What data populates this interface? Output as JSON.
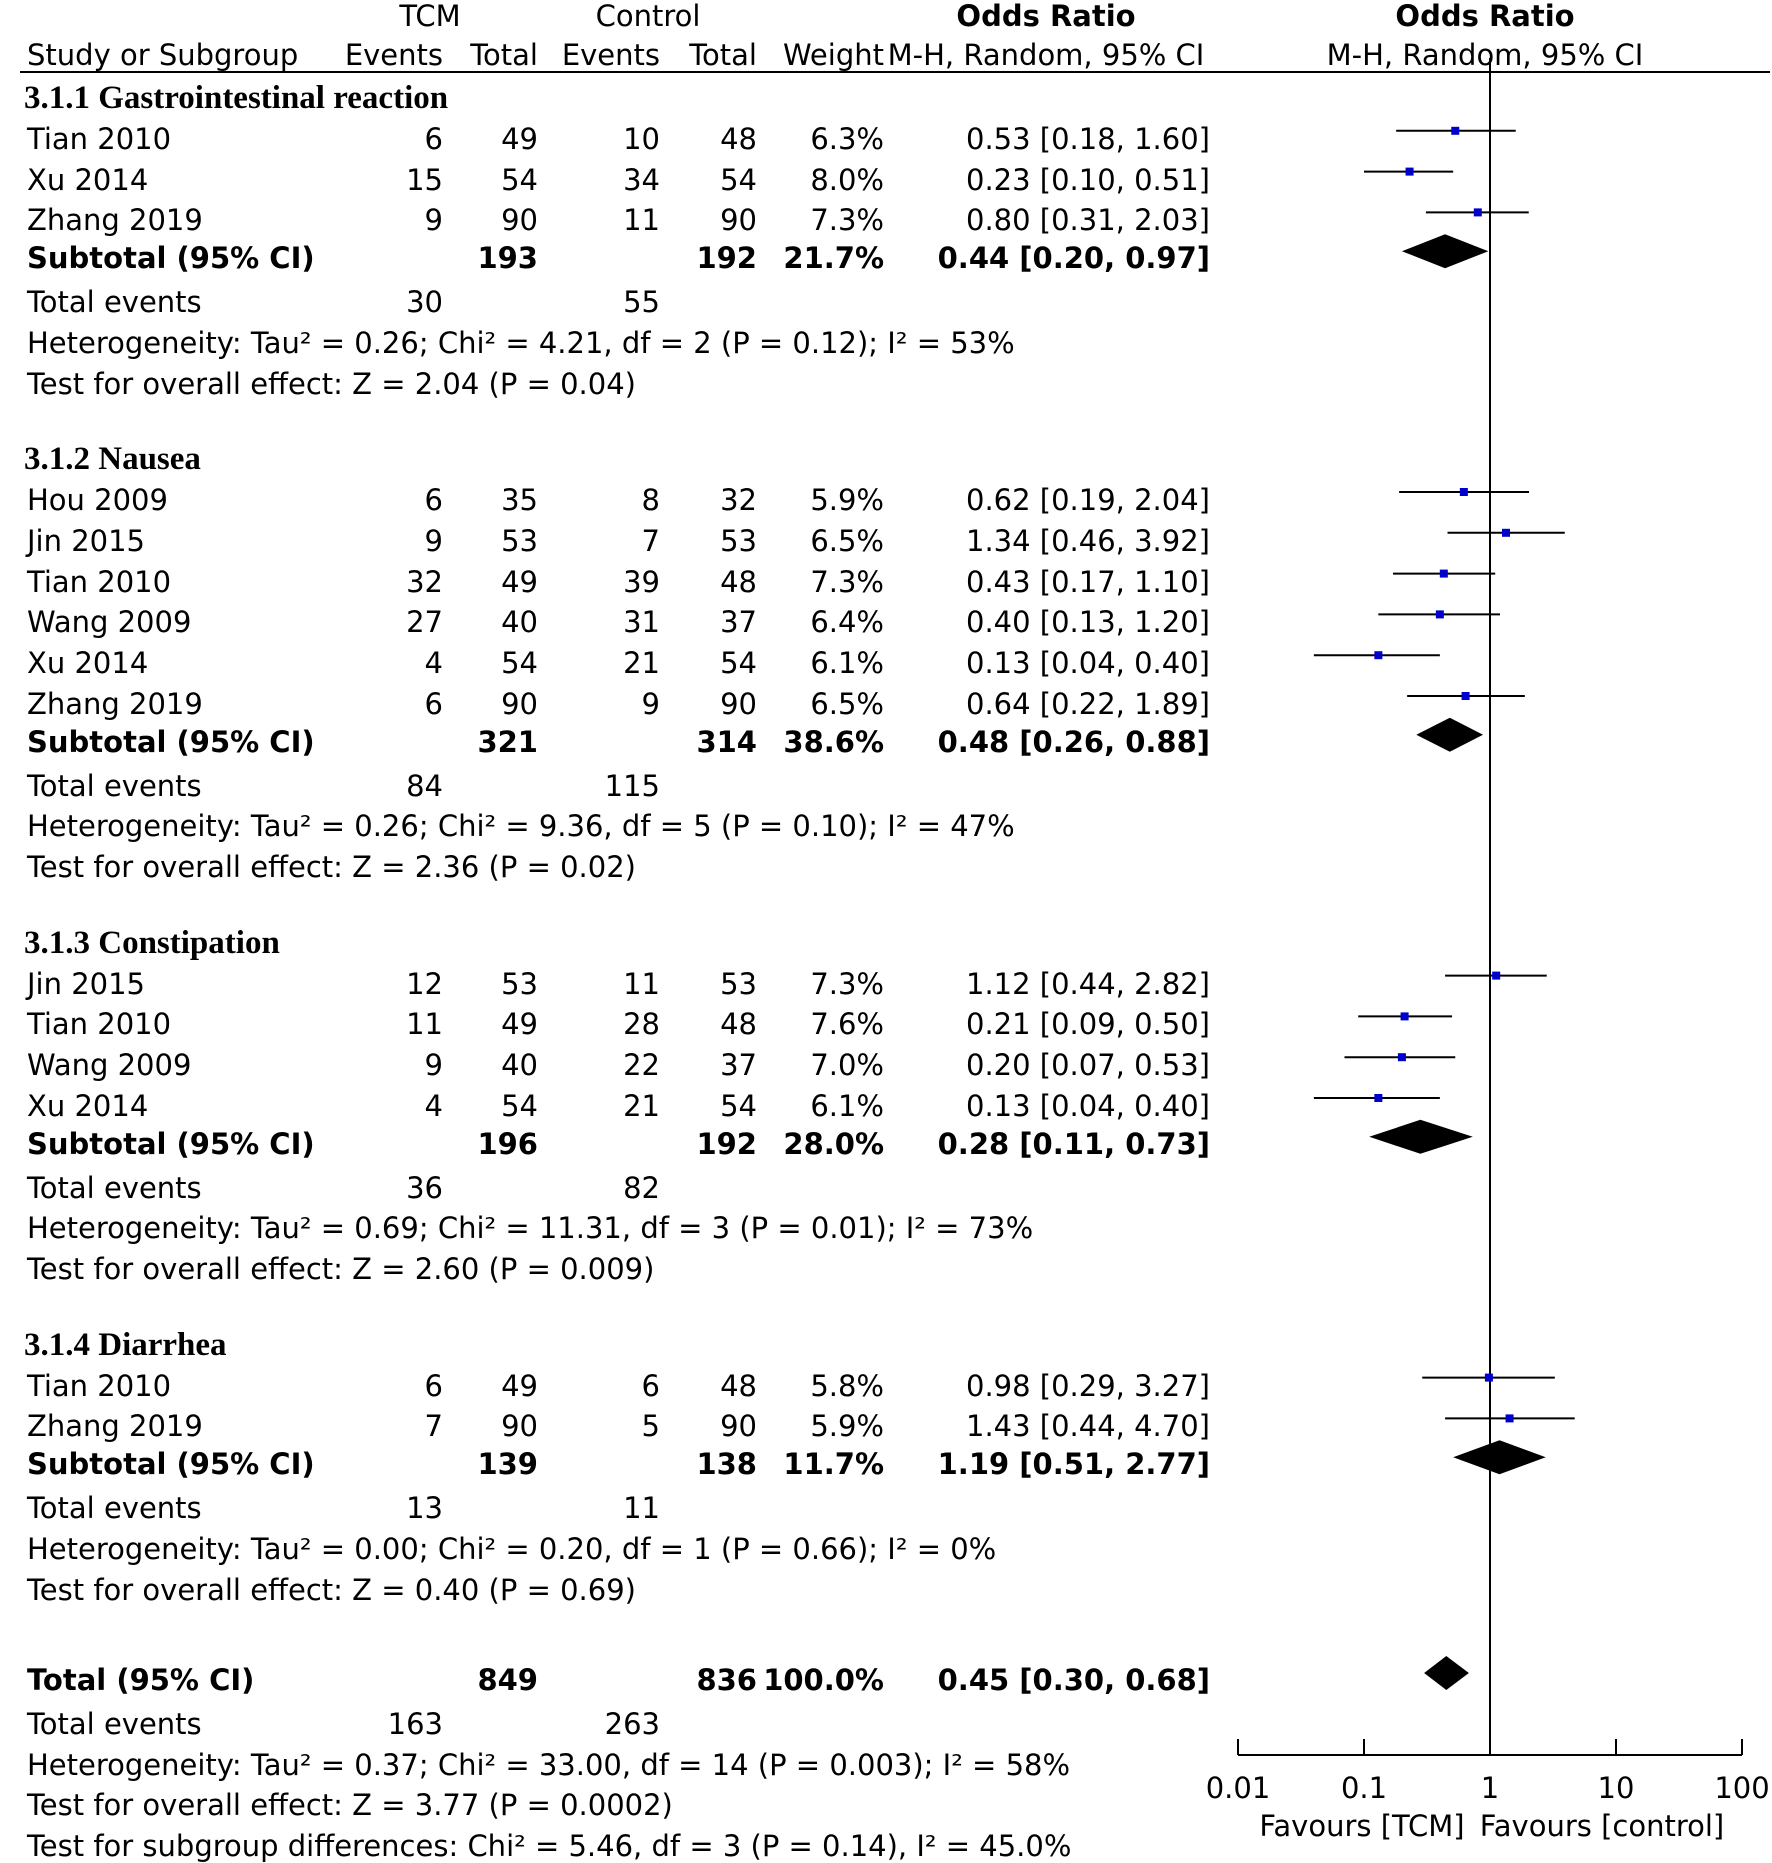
{
  "headers": {
    "tcm": "TCM",
    "control": "Control",
    "or_left": "Odds Ratio",
    "or_right": "Odds Ratio",
    "study": "Study or Subgroup",
    "tcm_events": "Events",
    "tcm_total": "Total",
    "ctrl_events": "Events",
    "ctrl_total": "Total",
    "weight": "Weight",
    "method_left": "M-H, Random, 95% CI",
    "method_right": "M-H, Random, 95% CI"
  },
  "subgroups": [
    {
      "title": "3.1.1 Gastrointestinal reaction",
      "studies": [
        {
          "name": "Tian 2010",
          "te": "6",
          "tt": "49",
          "ce": "10",
          "ct": "48",
          "w": "6.3%",
          "ci": "0.53 [0.18, 1.60]"
        },
        {
          "name": "Xu 2014",
          "te": "15",
          "tt": "54",
          "ce": "34",
          "ct": "54",
          "w": "8.0%",
          "ci": "0.23 [0.10, 0.51]"
        },
        {
          "name": "Zhang 2019",
          "te": "9",
          "tt": "90",
          "ce": "11",
          "ct": "90",
          "w": "7.3%",
          "ci": "0.80 [0.31, 2.03]"
        }
      ],
      "subtotal": {
        "label": "Subtotal (95% CI)",
        "tt": "193",
        "ct": "192",
        "w": "21.7%",
        "ci": "0.44 [0.20, 0.97]"
      },
      "events": {
        "label": "Total events",
        "te": "30",
        "ce": "55"
      },
      "heterogeneity": "Heterogeneity: Tau² = 0.26; Chi² = 4.21, df = 2 (P = 0.12); I² = 53%",
      "overall": "Test for overall effect: Z = 2.04 (P = 0.04)"
    },
    {
      "title": "3.1.2 Nausea",
      "studies": [
        {
          "name": "Hou 2009",
          "te": "6",
          "tt": "35",
          "ce": "8",
          "ct": "32",
          "w": "5.9%",
          "ci": "0.62 [0.19, 2.04]"
        },
        {
          "name": "Jin 2015",
          "te": "9",
          "tt": "53",
          "ce": "7",
          "ct": "53",
          "w": "6.5%",
          "ci": "1.34 [0.46, 3.92]"
        },
        {
          "name": "Tian 2010",
          "te": "32",
          "tt": "49",
          "ce": "39",
          "ct": "48",
          "w": "7.3%",
          "ci": "0.43 [0.17, 1.10]"
        },
        {
          "name": "Wang 2009",
          "te": "27",
          "tt": "40",
          "ce": "31",
          "ct": "37",
          "w": "6.4%",
          "ci": "0.40 [0.13, 1.20]"
        },
        {
          "name": "Xu 2014",
          "te": "4",
          "tt": "54",
          "ce": "21",
          "ct": "54",
          "w": "6.1%",
          "ci": "0.13 [0.04, 0.40]"
        },
        {
          "name": "Zhang 2019",
          "te": "6",
          "tt": "90",
          "ce": "9",
          "ct": "90",
          "w": "6.5%",
          "ci": "0.64 [0.22, 1.89]"
        }
      ],
      "subtotal": {
        "label": "Subtotal (95% CI)",
        "tt": "321",
        "ct": "314",
        "w": "38.6%",
        "ci": "0.48 [0.26, 0.88]"
      },
      "events": {
        "label": "Total events",
        "te": "84",
        "ce": "115"
      },
      "heterogeneity": "Heterogeneity: Tau² = 0.26; Chi² = 9.36, df = 5 (P = 0.10); I² = 47%",
      "overall": "Test for overall effect: Z = 2.36 (P = 0.02)"
    },
    {
      "title": "3.1.3 Constipation",
      "studies": [
        {
          "name": "Jin 2015",
          "te": "12",
          "tt": "53",
          "ce": "11",
          "ct": "53",
          "w": "7.3%",
          "ci": "1.12 [0.44, 2.82]"
        },
        {
          "name": "Tian 2010",
          "te": "11",
          "tt": "49",
          "ce": "28",
          "ct": "48",
          "w": "7.6%",
          "ci": "0.21 [0.09, 0.50]"
        },
        {
          "name": "Wang 2009",
          "te": "9",
          "tt": "40",
          "ce": "22",
          "ct": "37",
          "w": "7.0%",
          "ci": "0.20 [0.07, 0.53]"
        },
        {
          "name": "Xu 2014",
          "te": "4",
          "tt": "54",
          "ce": "21",
          "ct": "54",
          "w": "6.1%",
          "ci": "0.13 [0.04, 0.40]"
        }
      ],
      "subtotal": {
        "label": "Subtotal (95% CI)",
        "tt": "196",
        "ct": "192",
        "w": "28.0%",
        "ci": "0.28 [0.11, 0.73]"
      },
      "events": {
        "label": "Total events",
        "te": "36",
        "ce": "82"
      },
      "heterogeneity": "Heterogeneity: Tau² = 0.69; Chi² = 11.31, df = 3 (P = 0.01); I² = 73%",
      "overall": "Test for overall effect: Z = 2.60 (P = 0.009)"
    },
    {
      "title": "3.1.4 Diarrhea",
      "studies": [
        {
          "name": "Tian 2010",
          "te": "6",
          "tt": "49",
          "ce": "6",
          "ct": "48",
          "w": "5.8%",
          "ci": "0.98 [0.29, 3.27]"
        },
        {
          "name": "Zhang 2019",
          "te": "7",
          "tt": "90",
          "ce": "5",
          "ct": "90",
          "w": "5.9%",
          "ci": "1.43 [0.44, 4.70]"
        }
      ],
      "subtotal": {
        "label": "Subtotal (95% CI)",
        "tt": "139",
        "ct": "138",
        "w": "11.7%",
        "ci": "1.19 [0.51, 2.77]"
      },
      "events": {
        "label": "Total events",
        "te": "13",
        "ce": "11"
      },
      "heterogeneity": "Heterogeneity: Tau² = 0.00; Chi² = 0.20, df = 1 (P = 0.66); I² = 0%",
      "overall": "Test for overall effect: Z = 0.40 (P = 0.69)"
    }
  ],
  "total": {
    "label": "Total (95% CI)",
    "tt": "849",
    "ct": "836",
    "w": "100.0%",
    "ci": "0.45 [0.30, 0.68]",
    "events_label": "Total events",
    "te": "163",
    "ce": "263",
    "heterogeneity": "Heterogeneity: Tau² = 0.37; Chi² = 33.00, df = 14 (P = 0.003); I² = 58%",
    "overall": "Test for overall effect: Z = 3.77 (P = 0.0002)",
    "subgroup_diff": "Test for subgroup differences: Chi² = 5.46, df = 3 (P = 0.14), I² = 45.0%"
  },
  "axis": {
    "ticks": [
      "0.01",
      "0.1",
      "1",
      "10",
      "100"
    ],
    "favours_left": "Favours [TCM]",
    "favours_right": "Favours [control]"
  },
  "colors": {
    "study_marker": "#0000cc",
    "line": "#000000"
  },
  "chart_data": {
    "type": "forest",
    "x_scale": "log",
    "xlim": [
      0.01,
      100
    ],
    "reference_line": 1,
    "studies": [
      {
        "subgroup": "3.1.1 Gastrointestinal reaction",
        "name": "Tian 2010",
        "or": 0.53,
        "lo": 0.18,
        "hi": 1.6
      },
      {
        "subgroup": "3.1.1 Gastrointestinal reaction",
        "name": "Xu 2014",
        "or": 0.23,
        "lo": 0.1,
        "hi": 0.51
      },
      {
        "subgroup": "3.1.1 Gastrointestinal reaction",
        "name": "Zhang 2019",
        "or": 0.8,
        "lo": 0.31,
        "hi": 2.03
      },
      {
        "subgroup": "3.1.2 Nausea",
        "name": "Hou 2009",
        "or": 0.62,
        "lo": 0.19,
        "hi": 2.04
      },
      {
        "subgroup": "3.1.2 Nausea",
        "name": "Jin 2015",
        "or": 1.34,
        "lo": 0.46,
        "hi": 3.92
      },
      {
        "subgroup": "3.1.2 Nausea",
        "name": "Tian 2010",
        "or": 0.43,
        "lo": 0.17,
        "hi": 1.1
      },
      {
        "subgroup": "3.1.2 Nausea",
        "name": "Wang 2009",
        "or": 0.4,
        "lo": 0.13,
        "hi": 1.2
      },
      {
        "subgroup": "3.1.2 Nausea",
        "name": "Xu 2014",
        "or": 0.13,
        "lo": 0.04,
        "hi": 0.4
      },
      {
        "subgroup": "3.1.2 Nausea",
        "name": "Zhang 2019",
        "or": 0.64,
        "lo": 0.22,
        "hi": 1.89
      },
      {
        "subgroup": "3.1.3 Constipation",
        "name": "Jin 2015",
        "or": 1.12,
        "lo": 0.44,
        "hi": 2.82
      },
      {
        "subgroup": "3.1.3 Constipation",
        "name": "Tian 2010",
        "or": 0.21,
        "lo": 0.09,
        "hi": 0.5
      },
      {
        "subgroup": "3.1.3 Constipation",
        "name": "Wang 2009",
        "or": 0.2,
        "lo": 0.07,
        "hi": 0.53
      },
      {
        "subgroup": "3.1.3 Constipation",
        "name": "Xu 2014",
        "or": 0.13,
        "lo": 0.04,
        "hi": 0.4
      },
      {
        "subgroup": "3.1.4 Diarrhea",
        "name": "Tian 2010",
        "or": 0.98,
        "lo": 0.29,
        "hi": 3.27
      },
      {
        "subgroup": "3.1.4 Diarrhea",
        "name": "Zhang 2019",
        "or": 1.43,
        "lo": 0.44,
        "hi": 4.7
      }
    ],
    "summaries": [
      {
        "name": "3.1.1 Gastrointestinal reaction subtotal",
        "or": 0.44,
        "lo": 0.2,
        "hi": 0.97
      },
      {
        "name": "3.1.2 Nausea subtotal",
        "or": 0.48,
        "lo": 0.26,
        "hi": 0.88
      },
      {
        "name": "3.1.3 Constipation subtotal",
        "or": 0.28,
        "lo": 0.11,
        "hi": 0.73
      },
      {
        "name": "3.1.4 Diarrhea subtotal",
        "or": 1.19,
        "lo": 0.51,
        "hi": 2.77
      },
      {
        "name": "Total",
        "or": 0.45,
        "lo": 0.3,
        "hi": 0.68
      }
    ]
  }
}
